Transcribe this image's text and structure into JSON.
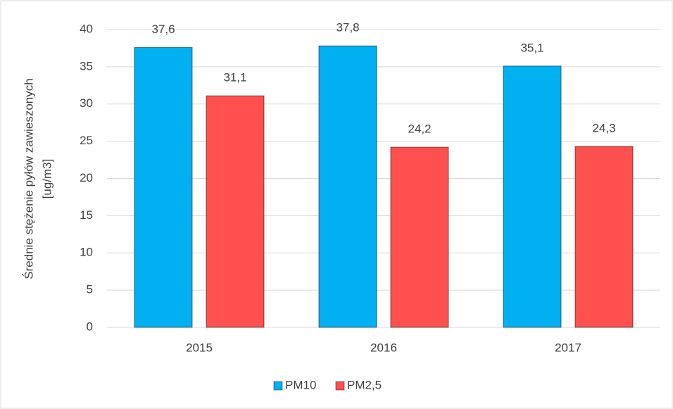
{
  "chart_data": {
    "type": "bar",
    "categories": [
      "2015",
      "2016",
      "2017"
    ],
    "series": [
      {
        "name": "PM10",
        "color": "#00b0f0",
        "values": [
          37.6,
          37.8,
          35.1
        ],
        "value_labels": [
          "37,6",
          "37,8",
          "35,1"
        ]
      },
      {
        "name": "PM2,5",
        "color": "#ff5050",
        "values": [
          31.1,
          24.2,
          24.3
        ],
        "value_labels": [
          "31,1",
          "24,2",
          "24,3"
        ]
      }
    ],
    "ylabel": [
      "Średnie stężenie pyłów zawieszonych",
      "[ug/m3]"
    ],
    "ylim": [
      0,
      40
    ],
    "yticks": [
      0,
      5,
      10,
      15,
      20,
      25,
      30,
      35,
      40
    ],
    "grid": true,
    "legend": "bottom"
  }
}
